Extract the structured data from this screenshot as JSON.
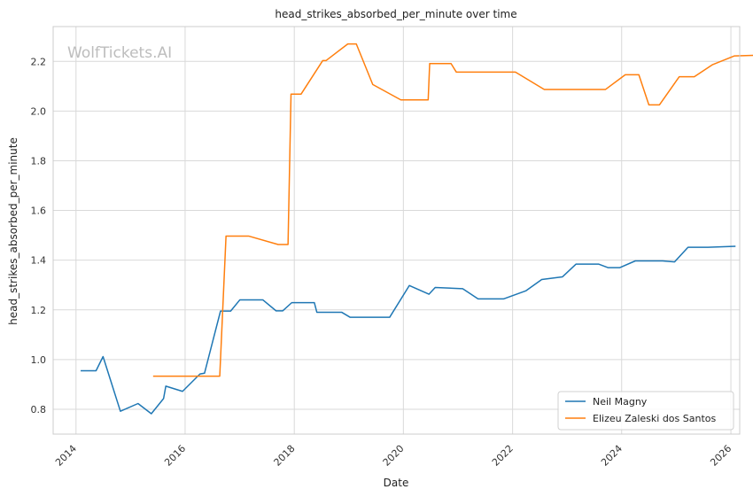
{
  "watermark": "WolfTickets.AI",
  "chart_data": {
    "type": "line",
    "title": "head_strikes_absorbed_per_minute over time",
    "xlabel": "Date",
    "ylabel": "head_strikes_absorbed_per_minute",
    "xlim": [
      "2013-08-01",
      "2026-03-01"
    ],
    "ylim": [
      0.7,
      2.34
    ],
    "x_ticks": [
      "2014",
      "2016",
      "2018",
      "2020",
      "2022",
      "2024",
      "2026"
    ],
    "y_ticks": [
      "0.8",
      "1.0",
      "1.2",
      "1.4",
      "1.6",
      "1.8",
      "2.0",
      "2.2"
    ],
    "grid": true,
    "legend_position": "bottom-right",
    "series": [
      {
        "name": "Neil Magny",
        "color": "#1f77b4",
        "points": [
          [
            "2014-02-01",
            0.955
          ],
          [
            "2014-05-15",
            0.955
          ],
          [
            "2014-07-01",
            1.012
          ],
          [
            "2014-10-25",
            0.792
          ],
          [
            "2015-02-20",
            0.823
          ],
          [
            "2015-05-20",
            0.782
          ],
          [
            "2015-08-10",
            0.843
          ],
          [
            "2015-08-25",
            0.893
          ],
          [
            "2015-12-15",
            0.872
          ],
          [
            "2016-04-10",
            0.942
          ],
          [
            "2016-05-10",
            0.945
          ],
          [
            "2016-08-25",
            1.195
          ],
          [
            "2016-11-01",
            1.195
          ],
          [
            "2017-01-01",
            1.24
          ],
          [
            "2017-06-05",
            1.24
          ],
          [
            "2017-09-01",
            1.196
          ],
          [
            "2017-10-15",
            1.196
          ],
          [
            "2017-12-15",
            1.229
          ],
          [
            "2018-05-15",
            1.229
          ],
          [
            "2018-06-01",
            1.19
          ],
          [
            "2018-11-15",
            1.19
          ],
          [
            "2019-01-10",
            1.17
          ],
          [
            "2019-10-01",
            1.17
          ],
          [
            "2020-02-10",
            1.298
          ],
          [
            "2020-06-20",
            1.263
          ],
          [
            "2020-08-01",
            1.29
          ],
          [
            "2021-02-01",
            1.285
          ],
          [
            "2021-05-15",
            1.244
          ],
          [
            "2021-11-01",
            1.244
          ],
          [
            "2022-04-01",
            1.277
          ],
          [
            "2022-07-15",
            1.322
          ],
          [
            "2022-12-01",
            1.333
          ],
          [
            "2023-03-01",
            1.384
          ],
          [
            "2023-08-01",
            1.384
          ],
          [
            "2023-10-01",
            1.37
          ],
          [
            "2023-12-20",
            1.37
          ],
          [
            "2024-04-01",
            1.397
          ],
          [
            "2024-10-01",
            1.397
          ],
          [
            "2024-12-20",
            1.393
          ],
          [
            "2025-03-20",
            1.452
          ],
          [
            "2025-08-01",
            1.452
          ],
          [
            "2026-02-01",
            1.456
          ]
        ]
      },
      {
        "name": "Elizeu Zaleski dos Santos",
        "color": "#ff7f0e",
        "points": [
          [
            "2015-06-01",
            0.933
          ],
          [
            "2016-08-20",
            0.933
          ],
          [
            "2016-10-01",
            1.497
          ],
          [
            "2017-03-01",
            1.497
          ],
          [
            "2017-09-15",
            1.463
          ],
          [
            "2017-11-20",
            1.463
          ],
          [
            "2017-12-10",
            2.068
          ],
          [
            "2018-02-15",
            2.068
          ],
          [
            "2018-07-10",
            2.203
          ],
          [
            "2018-08-01",
            2.203
          ],
          [
            "2018-12-25",
            2.27
          ],
          [
            "2019-02-20",
            2.27
          ],
          [
            "2019-06-10",
            2.107
          ],
          [
            "2019-12-15",
            2.045
          ],
          [
            "2020-06-15",
            2.045
          ],
          [
            "2020-06-25",
            2.191
          ],
          [
            "2020-11-15",
            2.191
          ],
          [
            "2020-12-20",
            2.157
          ],
          [
            "2022-01-20",
            2.157
          ],
          [
            "2022-08-01",
            2.087
          ],
          [
            "2023-09-15",
            2.087
          ],
          [
            "2024-01-25",
            2.146
          ],
          [
            "2024-04-25",
            2.146
          ],
          [
            "2024-07-01",
            2.025
          ],
          [
            "2024-09-10",
            2.025
          ],
          [
            "2025-01-20",
            2.138
          ],
          [
            "2025-05-01",
            2.138
          ],
          [
            "2025-09-01",
            2.187
          ],
          [
            "2026-01-25",
            2.222
          ],
          [
            "2026-06-01",
            2.224
          ]
        ]
      }
    ]
  }
}
